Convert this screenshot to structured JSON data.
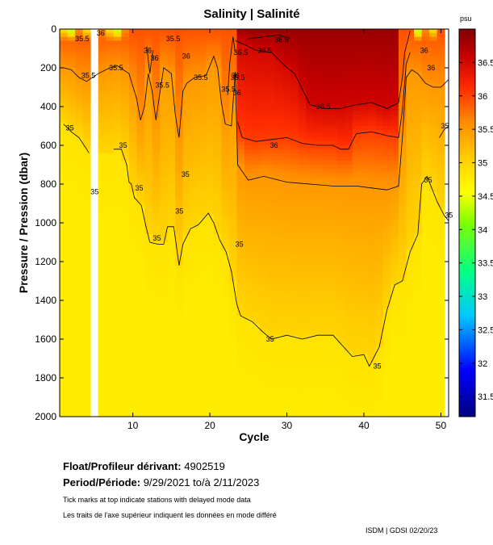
{
  "chart_data": {
    "type": "heatmap",
    "title": "Salinity | Salinité",
    "xlabel": "Cycle",
    "ylabel": "Pressure / Pression (dbar)",
    "colorbar_unit": "psu",
    "xlim": [
      0.5,
      51
    ],
    "ylim": [
      0,
      2000
    ],
    "y_inverted": true,
    "x_ticks": [
      10,
      20,
      30,
      40,
      50
    ],
    "y_ticks": [
      0,
      200,
      400,
      600,
      800,
      1000,
      1200,
      1400,
      1600,
      1800,
      2000
    ],
    "colorbar_range": [
      31.2,
      37.0
    ],
    "colorbar_ticks": [
      31.5,
      32,
      32.5,
      33,
      33.5,
      34,
      34.5,
      35,
      35.5,
      36,
      36.5
    ],
    "colorbar_tick_labels": [
      "31.5",
      "32",
      "32.5",
      "33",
      "33.5",
      "34",
      "34.5",
      "35",
      "35.5",
      "36",
      "36.5"
    ],
    "missing_profiles": [
      5
    ],
    "contour_levels": [
      35,
      35.5,
      36,
      36.5
    ],
    "contour_35": {
      "segments": [
        [
          [
            1,
            490
          ],
          [
            2,
            530
          ],
          [
            3,
            560
          ],
          [
            4,
            620
          ],
          [
            4.3,
            640
          ]
        ],
        [
          [
            7.5,
            620
          ],
          [
            8.5,
            620
          ],
          [
            9.2,
            700
          ],
          [
            9.5,
            790
          ],
          [
            9.8,
            800
          ],
          [
            10.2,
            870
          ],
          [
            11.1,
            910
          ],
          [
            11.6,
            1000
          ],
          [
            12.2,
            1100
          ],
          [
            13.2,
            1110
          ],
          [
            14,
            1110
          ],
          [
            14.5,
            1020
          ],
          [
            15.3,
            1020
          ],
          [
            15.8,
            1160
          ],
          [
            16,
            1220
          ],
          [
            16.5,
            1110
          ],
          [
            17.5,
            1030
          ],
          [
            18.5,
            1010
          ],
          [
            19.8,
            950
          ],
          [
            20.5,
            1000
          ],
          [
            21.3,
            1090
          ],
          [
            22.1,
            1150
          ],
          [
            22.8,
            1250
          ],
          [
            23.5,
            1420
          ],
          [
            24,
            1480
          ],
          [
            25.5,
            1510
          ],
          [
            26.8,
            1560
          ],
          [
            28,
            1600
          ],
          [
            30,
            1580
          ],
          [
            32,
            1600
          ],
          [
            34,
            1580
          ],
          [
            36,
            1580
          ],
          [
            38.5,
            1690
          ],
          [
            40,
            1680
          ],
          [
            40.7,
            1740
          ],
          [
            42,
            1640
          ],
          [
            43,
            1450
          ],
          [
            44,
            1320
          ],
          [
            45,
            1300
          ],
          [
            46,
            1150
          ],
          [
            47,
            1060
          ],
          [
            47.5,
            800
          ],
          [
            48.2,
            760
          ],
          [
            49.5,
            890
          ],
          [
            50.4,
            960
          ],
          [
            51,
            990
          ]
        ],
        [
          [
            49.8,
            560
          ],
          [
            50.4,
            520
          ],
          [
            51,
            500
          ]
        ]
      ],
      "labels": [
        {
          "x": 1.3,
          "y": 510,
          "text": "35"
        },
        {
          "x": 4.5,
          "y": 840,
          "text": "35"
        },
        {
          "x": 8.2,
          "y": 600,
          "text": "35"
        },
        {
          "x": 10.3,
          "y": 820,
          "text": "35"
        },
        {
          "x": 12.6,
          "y": 1080,
          "text": "35"
        },
        {
          "x": 15.5,
          "y": 940,
          "text": "35"
        },
        {
          "x": 16.3,
          "y": 750,
          "text": "35"
        },
        {
          "x": 23.3,
          "y": 1110,
          "text": "35"
        },
        {
          "x": 27.3,
          "y": 1600,
          "text": "35"
        },
        {
          "x": 41.2,
          "y": 1740,
          "text": "35"
        },
        {
          "x": 47.8,
          "y": 780,
          "text": "35"
        },
        {
          "x": 50.5,
          "y": 960,
          "text": "35"
        },
        {
          "x": 50,
          "y": 500,
          "text": "35"
        }
      ]
    },
    "contour_355": {
      "segments": [
        [
          [
            1,
            200
          ],
          [
            2,
            210
          ],
          [
            3,
            250
          ],
          [
            4,
            270
          ],
          [
            5.5,
            230
          ],
          [
            7,
            200
          ],
          [
            8,
            190
          ],
          [
            9.5,
            230
          ],
          [
            10.5,
            360
          ],
          [
            11,
            470
          ],
          [
            11.5,
            400
          ],
          [
            12,
            230
          ],
          [
            12.5,
            320
          ],
          [
            13,
            470
          ],
          [
            13.5,
            330
          ],
          [
            14,
            200
          ],
          [
            15,
            230
          ],
          [
            15.5,
            440
          ],
          [
            16,
            560
          ],
          [
            16.5,
            320
          ],
          [
            17,
            280
          ],
          [
            18,
            250
          ],
          [
            19.5,
            240
          ],
          [
            20.5,
            140
          ],
          [
            21,
            200
          ],
          [
            21.5,
            380
          ],
          [
            22,
            490
          ],
          [
            22.8,
            500
          ],
          [
            23.3,
            220
          ],
          [
            23.6,
            700
          ],
          [
            25,
            780
          ],
          [
            27,
            760
          ],
          [
            30,
            790
          ],
          [
            33,
            800
          ],
          [
            36,
            810
          ],
          [
            39,
            810
          ],
          [
            41,
            820
          ],
          [
            43,
            830
          ],
          [
            44.5,
            810
          ],
          [
            45,
            560
          ],
          [
            45.5,
            250
          ],
          [
            46.2,
            210
          ],
          [
            47,
            230
          ],
          [
            48,
            280
          ],
          [
            49,
            300
          ],
          [
            50,
            300
          ],
          [
            51,
            260
          ]
        ]
      ],
      "labels": [
        {
          "x": 3.3,
          "y": 240,
          "text": "35.5"
        },
        {
          "x": 6.9,
          "y": 200,
          "text": "35.5"
        },
        {
          "x": 12.9,
          "y": 290,
          "text": "35.5"
        },
        {
          "x": 17.9,
          "y": 250,
          "text": "35.5"
        },
        {
          "x": 21.5,
          "y": 310,
          "text": "35.5"
        },
        {
          "x": 14.3,
          "y": 50,
          "text": "35.5"
        },
        {
          "x": 2.5,
          "y": 50,
          "text": "35.5"
        }
      ]
    },
    "contour_36": {
      "segments": [
        [
          [
            23.6,
            480
          ],
          [
            24.2,
            560
          ],
          [
            26,
            580
          ],
          [
            28,
            570
          ],
          [
            30,
            560
          ],
          [
            32,
            590
          ],
          [
            34,
            600
          ],
          [
            36,
            600
          ],
          [
            37,
            620
          ],
          [
            38,
            620
          ],
          [
            39,
            540
          ],
          [
            41,
            530
          ],
          [
            43,
            550
          ],
          [
            44.5,
            560
          ],
          [
            45,
            420
          ],
          [
            45.5,
            180
          ],
          [
            46,
            120
          ]
        ],
        [
          [
            22.3,
            340
          ],
          [
            22.6,
            170
          ],
          [
            23,
            40
          ],
          [
            23.3,
            120
          ]
        ],
        [
          [
            11.8,
            90
          ],
          [
            12.2,
            230
          ],
          [
            12.6,
            110
          ]
        ]
      ],
      "labels": [
        {
          "x": 27.8,
          "y": 600,
          "text": "36"
        },
        {
          "x": 23,
          "y": 330,
          "text": "36"
        },
        {
          "x": 22.8,
          "y": 240,
          "text": "36"
        },
        {
          "x": 12.3,
          "y": 150,
          "text": "36"
        },
        {
          "x": 16.4,
          "y": 140,
          "text": "36"
        },
        {
          "x": 11.4,
          "y": 110,
          "text": "36"
        },
        {
          "x": 5.3,
          "y": 20,
          "text": "36"
        }
      ]
    },
    "contour_365": {
      "segments": [
        [
          [
            23.3,
            60
          ],
          [
            24.5,
            80
          ],
          [
            26,
            110
          ],
          [
            28,
            120
          ],
          [
            30,
            200
          ],
          [
            31,
            230
          ],
          [
            33,
            390
          ],
          [
            35,
            410
          ],
          [
            37,
            410
          ],
          [
            39,
            390
          ],
          [
            41,
            380
          ],
          [
            43,
            410
          ],
          [
            44.5,
            380
          ],
          [
            45,
            250
          ],
          [
            45.3,
            120
          ],
          [
            46,
            10
          ]
        ],
        [
          [
            25,
            50
          ],
          [
            27,
            40
          ],
          [
            29,
            30
          ],
          [
            30.5,
            50
          ]
        ]
      ],
      "labels": [
        {
          "x": 33.8,
          "y": 400,
          "text": "36.5"
        },
        {
          "x": 23.1,
          "y": 120,
          "text": "36.5"
        },
        {
          "x": 22.7,
          "y": 250,
          "text": "36.5"
        },
        {
          "x": 26.2,
          "y": 110,
          "text": "36.5"
        },
        {
          "x": 28.4,
          "y": 55,
          "text": "36.5"
        },
        {
          "x": 47.3,
          "y": 110,
          "text": "36"
        },
        {
          "x": 48.2,
          "y": 200,
          "text": "36"
        }
      ]
    }
  },
  "info": {
    "float_label": "Float/Profileur dérivant:",
    "float_value": "4902519",
    "period_label": "Period/Période:",
    "period_value": "9/29/2021  to/à  2/11/2023",
    "note_en": "Tick marks at top indicate stations with delayed mode data",
    "note_fr": "Les traits de l'axe supérieur indiquent les données en mode différé",
    "credit": "ISDM | GDSI  02/20/23"
  }
}
